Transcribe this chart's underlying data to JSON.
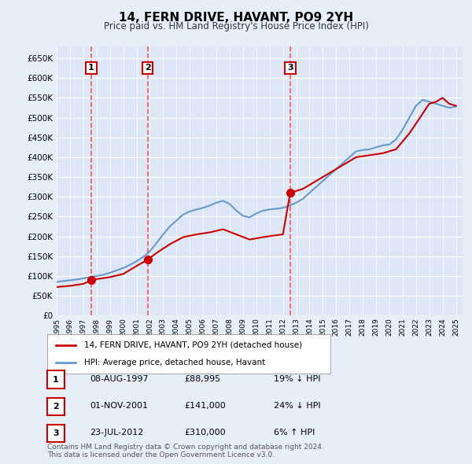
{
  "title": "14, FERN DRIVE, HAVANT, PO9 2YH",
  "subtitle": "Price paid vs. HM Land Registry's House Price Index (HPI)",
  "ylabel": "",
  "bg_color": "#e8eef8",
  "plot_bg_color": "#dce6f5",
  "grid_color": "#ffffff",
  "line1_color": "#cc0000",
  "line2_color": "#6699cc",
  "sale_marker_color": "#cc0000",
  "vline_color": "#ff4444",
  "ylim": [
    0,
    680000
  ],
  "yticks": [
    0,
    50000,
    100000,
    150000,
    200000,
    250000,
    300000,
    350000,
    400000,
    450000,
    500000,
    550000,
    600000,
    650000
  ],
  "sales": [
    {
      "date_num": 1997.6,
      "price": 88995,
      "label": "1"
    },
    {
      "date_num": 2001.83,
      "price": 141000,
      "label": "2"
    },
    {
      "date_num": 2012.55,
      "price": 310000,
      "label": "3"
    }
  ],
  "table_rows": [
    {
      "num": "1",
      "date": "08-AUG-1997",
      "price": "£88,995",
      "hpi": "19% ↓ HPI"
    },
    {
      "num": "2",
      "date": "01-NOV-2001",
      "price": "£141,000",
      "hpi": "24% ↓ HPI"
    },
    {
      "num": "3",
      "date": "23-JUL-2012",
      "price": "£310,000",
      "hpi": "6% ↑ HPI"
    }
  ],
  "legend1_label": "14, FERN DRIVE, HAVANT, PO9 2YH (detached house)",
  "legend2_label": "HPI: Average price, detached house, Havant",
  "footer": "Contains HM Land Registry data © Crown copyright and database right 2024.\nThis data is licensed under the Open Government Licence v3.0.",
  "xmin": 1995.0,
  "xmax": 2025.5
}
